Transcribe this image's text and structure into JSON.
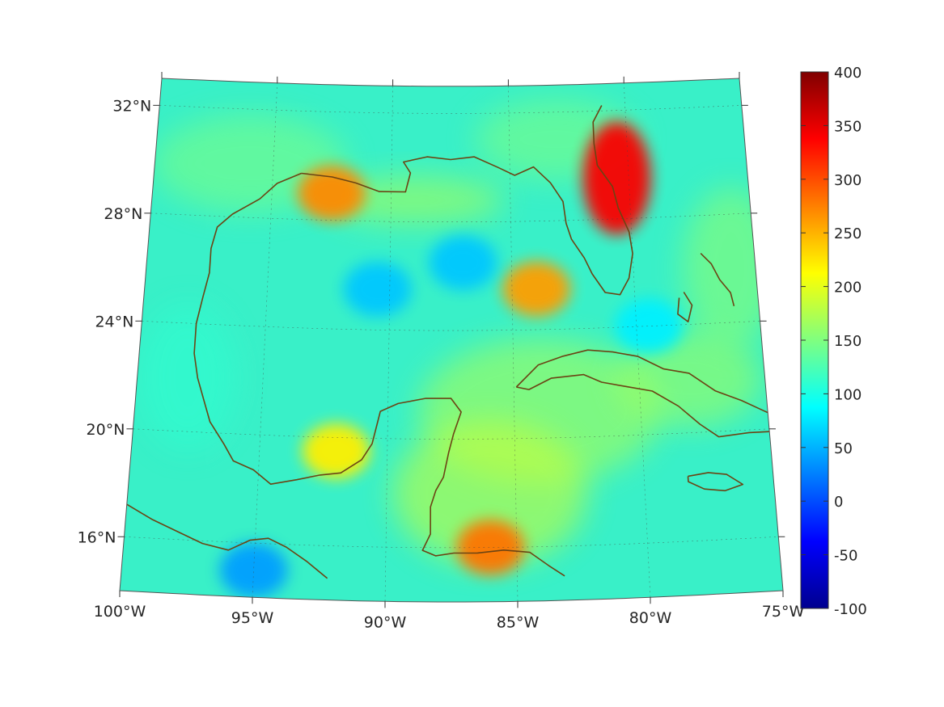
{
  "map": {
    "projection": "conic",
    "region": "Gulf of Mexico and Caribbean",
    "lon_labels": [
      "100°W",
      "95°W",
      "90°W",
      "85°W",
      "80°W",
      "75°W"
    ],
    "lat_labels": [
      "32°N",
      "28°N",
      "24°N",
      "20°N",
      "16°N"
    ],
    "lon_range": [
      -100,
      -75
    ],
    "lat_range": [
      14,
      33
    ],
    "grid": true,
    "coastline_color": "#6b4414"
  },
  "colorbar": {
    "colormap": "jet",
    "range": [
      -100,
      400
    ],
    "ticks": [
      "400",
      "350",
      "300",
      "250",
      "200",
      "150",
      "100",
      "50",
      "0",
      "-50",
      "-100"
    ],
    "placement": "right"
  },
  "features": [
    {
      "name": "hotspot-east-of-florida",
      "lon": -80.5,
      "lat": 29.5,
      "value": 340
    },
    {
      "name": "hotspot-louisiana-coast",
      "lon": -92.5,
      "lat": 29,
      "value": 270
    },
    {
      "name": "hotspot-west-florida-shelf",
      "lon": -84,
      "lat": 25.5,
      "value": 260
    },
    {
      "name": "hotspot-honduras",
      "lon": -86,
      "lat": 16,
      "value": 280
    },
    {
      "name": "warm-spot-campeche",
      "lon": -92,
      "lat": 19.5,
      "value": 220
    },
    {
      "name": "low-central-gulf",
      "lon": -90.5,
      "lat": 25.5,
      "value": 60
    },
    {
      "name": "low-eastern-gulf",
      "lon": -87,
      "lat": 26.5,
      "value": 60
    },
    {
      "name": "low-pacific-coast",
      "lon": -95,
      "lat": 15,
      "value": 40
    },
    {
      "name": "low-straits-bahamas",
      "lon": -79.5,
      "lat": 24,
      "value": 80
    }
  ]
}
